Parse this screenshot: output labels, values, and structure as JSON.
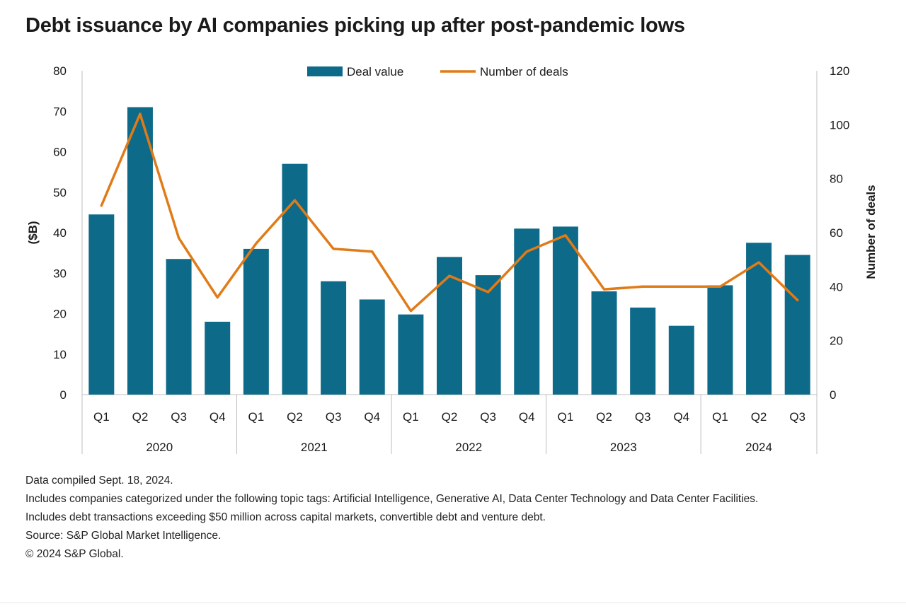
{
  "chart_data": {
    "type": "bar",
    "title": "Debt issuance by AI companies picking up after post-pandemic lows",
    "categories": [
      "Q1",
      "Q2",
      "Q3",
      "Q4",
      "Q1",
      "Q2",
      "Q3",
      "Q4",
      "Q1",
      "Q2",
      "Q3",
      "Q4",
      "Q1",
      "Q2",
      "Q3",
      "Q4",
      "Q1",
      "Q2",
      "Q3"
    ],
    "groups": [
      {
        "label": "2020",
        "count": 4
      },
      {
        "label": "2021",
        "count": 4
      },
      {
        "label": "2022",
        "count": 4
      },
      {
        "label": "2023",
        "count": 4
      },
      {
        "label": "2024",
        "count": 3
      }
    ],
    "series": [
      {
        "name": "Deal value",
        "type": "bar",
        "axis": "left",
        "color": "#0e6a89",
        "values": [
          44.5,
          71,
          33.5,
          18,
          36,
          57,
          28,
          23.5,
          19.8,
          34,
          29.5,
          41,
          41.5,
          25.5,
          21.5,
          17,
          27,
          37.5,
          34.5
        ]
      },
      {
        "name": "Number of deals",
        "type": "line",
        "axis": "right",
        "color": "#e07b17",
        "values": [
          70,
          104,
          58,
          36,
          56,
          72,
          54,
          53,
          31,
          44,
          38,
          53,
          59,
          39,
          40,
          40,
          40,
          49,
          35
        ]
      }
    ],
    "ylabel": "($B)",
    "ylim": [
      0,
      80
    ],
    "yticks": [
      0,
      10,
      20,
      30,
      40,
      50,
      60,
      70,
      80
    ],
    "y2label": "Number of deals",
    "y2lim": [
      0,
      120
    ],
    "y2ticks": [
      0,
      20,
      40,
      60,
      80,
      100,
      120
    ],
    "legend": "top-center",
    "grid": false
  },
  "notes": [
    "Data compiled Sept. 18, 2024.",
    "Includes companies categorized under the following topic tags: Artificial Intelligence, Generative AI, Data Center Technology and Data Center Facilities.",
    "Includes debt transactions exceeding $50 million across capital markets, convertible debt and venture debt.",
    "Source: S&P Global Market Intelligence.",
    "© 2024 S&P Global."
  ]
}
